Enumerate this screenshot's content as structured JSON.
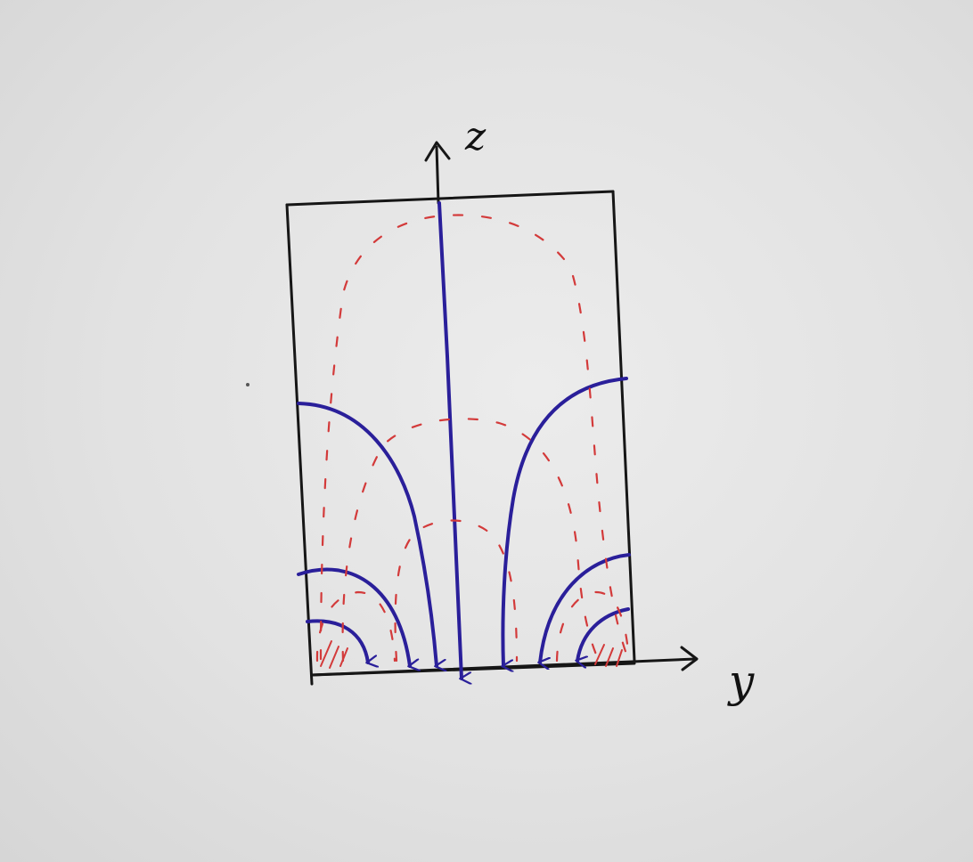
{
  "diagram": {
    "axes": {
      "vertical_label": "z",
      "horizontal_label": "y"
    },
    "colors": {
      "paper": "#e4e4e4",
      "ink_black": "#161616",
      "field_lines": "#2a1f9a",
      "dashed_contours": "#d33a3a"
    }
  }
}
